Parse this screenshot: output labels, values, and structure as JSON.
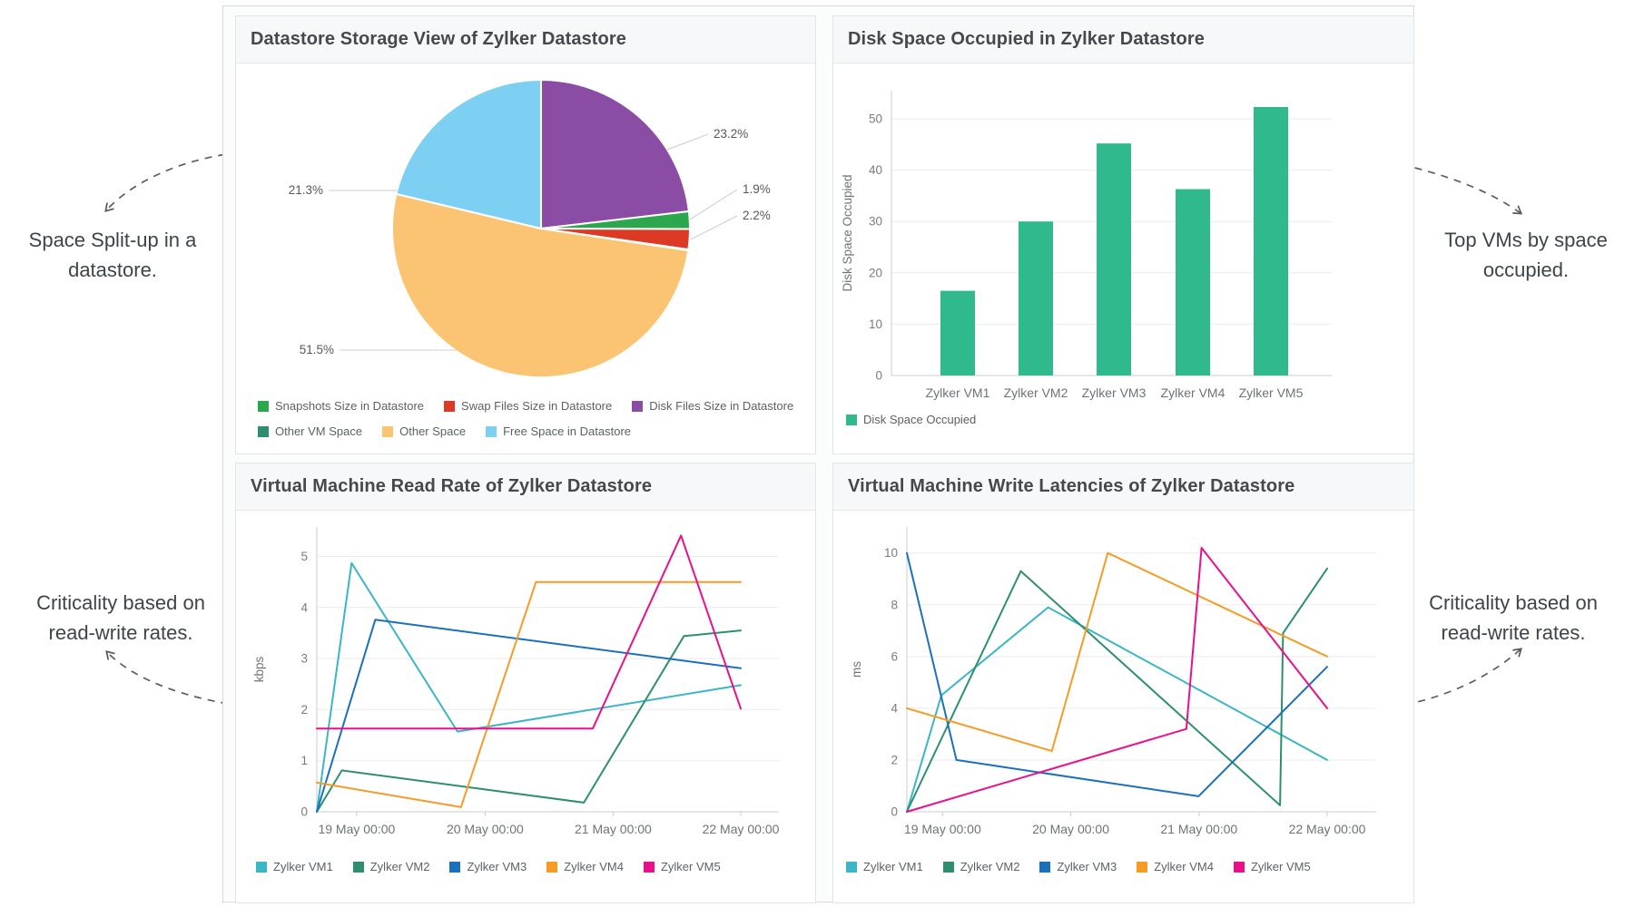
{
  "annotations": {
    "top_left": "Space Split-up in a datastore.",
    "top_right": "Top VMs by space occupied.",
    "bottom_left": "Criticality based on read-write rates.",
    "bottom_right": "Criticality based on read-write rates."
  },
  "chart_data": [
    {
      "type": "pie",
      "title": "Datastore Storage View of Zylker Datastore",
      "slices": [
        {
          "label": "Disk Files Size in Datastore",
          "value": 23.2,
          "color": "#8a4ca4",
          "pct_label": "23.2%"
        },
        {
          "label": "Snapshots Size in Datastore",
          "value": 1.9,
          "color": "#2ca74d",
          "pct_label": "1.9%"
        },
        {
          "label": "Swap Files Size in Datastore",
          "value": 2.2,
          "color": "#dc3a25",
          "pct_label": "2.2%"
        },
        {
          "label": "Other VM Space",
          "value": 0.1,
          "color": "#2d8f6e",
          "pct_label": ""
        },
        {
          "label": "Other Space",
          "value": 51.5,
          "color": "#fac473",
          "pct_label": "51.5%"
        },
        {
          "label": "Free Space in Datastore",
          "value": 21.3,
          "color": "#7ed0f2",
          "pct_label": "21.3%"
        }
      ],
      "legend_rows": [
        [
          {
            "label": "Snapshots Size in Datastore",
            "color": "#2ca74d"
          },
          {
            "label": "Swap Files Size in Datastore",
            "color": "#dc3a25"
          },
          {
            "label": "Disk Files Size in Datastore",
            "color": "#8a4ca4"
          }
        ],
        [
          {
            "label": "Other VM Space",
            "color": "#2d8f6e"
          },
          {
            "label": "Other Space",
            "color": "#fac473"
          },
          {
            "label": "Free Space in Datastore",
            "color": "#7ed0f2"
          }
        ]
      ]
    },
    {
      "type": "bar",
      "title": "Disk Space Occupied in Zylker Datastore",
      "categories": [
        "Zylker VM1",
        "Zylker VM2",
        "Zylker VM3",
        "Zylker VM4",
        "Zylker VM5"
      ],
      "values": [
        16.5,
        30,
        45.2,
        36.3,
        52.3
      ],
      "ylabel": "Disk Space Occupied",
      "yticks": [
        0,
        10,
        20,
        30,
        40,
        50
      ],
      "ylim": [
        0,
        55
      ],
      "bar_color": "#2fb98c",
      "legend": [
        {
          "label": "Disk Space Occupied",
          "color": "#2fb98c"
        }
      ]
    },
    {
      "type": "line",
      "title": "Virtual Machine Read Rate of Zylker Datastore",
      "ylabel": "kbps",
      "yticks": [
        0,
        1,
        2,
        3,
        4,
        5
      ],
      "ylim": [
        0,
        5.55
      ],
      "xtick_labels": [
        "19 May 00:00",
        "20 May 00:00",
        "21 May 00:00",
        "22 May 00:00"
      ],
      "xtick_positions": [
        0.094,
        0.397,
        0.699,
        1.0
      ],
      "series": [
        {
          "name": "Zylker VM1",
          "color": "#3ab6c6",
          "points": [
            [
              0,
              0
            ],
            [
              0.082,
              4.87
            ],
            [
              0.332,
              1.57
            ],
            [
              1,
              2.48
            ]
          ]
        },
        {
          "name": "Zylker VM2",
          "color": "#2d8f6e",
          "points": [
            [
              0,
              0
            ],
            [
              0.059,
              0.81
            ],
            [
              0.63,
              0.18
            ],
            [
              0.866,
              3.44
            ],
            [
              1,
              3.55
            ]
          ]
        },
        {
          "name": "Zylker VM3",
          "color": "#1a70bd",
          "points": [
            [
              0,
              0
            ],
            [
              0.138,
              3.76
            ],
            [
              1,
              2.81
            ]
          ]
        },
        {
          "name": "Zylker VM4",
          "color": "#f79b27",
          "points": [
            [
              0,
              0.57
            ],
            [
              0.34,
              0.09
            ],
            [
              0.517,
              4.5
            ],
            [
              1,
              4.5
            ]
          ]
        },
        {
          "name": "Zylker VM5",
          "color": "#eb0f8c",
          "points": [
            [
              0,
              1.63
            ],
            [
              0.651,
              1.63
            ],
            [
              0.859,
              5.41
            ],
            [
              1,
              2.02
            ]
          ]
        }
      ]
    },
    {
      "type": "line",
      "title": "Virtual Machine Write Latencies of Zylker Datastore",
      "ylabel": "ms",
      "yticks": [
        0,
        2,
        4,
        6,
        8,
        10
      ],
      "ylim": [
        0,
        11.1
      ],
      "xtick_labels": [
        "19 May 00:00",
        "20 May 00:00",
        "21 May 00:00",
        "22 May 00:00"
      ],
      "xtick_positions": [
        0.085,
        0.39,
        0.695,
        1.0
      ],
      "series": [
        {
          "name": "Zylker VM1",
          "color": "#3ab6c6",
          "points": [
            [
              0,
              0
            ],
            [
              0.082,
              4.5
            ],
            [
              0.336,
              7.9
            ],
            [
              1,
              2.0
            ]
          ]
        },
        {
          "name": "Zylker VM2",
          "color": "#2d8f6e",
          "points": [
            [
              0,
              0
            ],
            [
              0.271,
              9.3
            ],
            [
              0.888,
              0.25
            ],
            [
              0.895,
              6.9
            ],
            [
              1,
              9.4
            ]
          ]
        },
        {
          "name": "Zylker VM3",
          "color": "#1a70bd",
          "points": [
            [
              0,
              10
            ],
            [
              0.118,
              2.0
            ],
            [
              0.694,
              0.6
            ],
            [
              1,
              5.6
            ]
          ]
        },
        {
          "name": "Zylker VM4",
          "color": "#f79b27",
          "points": [
            [
              0,
              4.0
            ],
            [
              0.345,
              2.35
            ],
            [
              0.478,
              10.0
            ],
            [
              1,
              6.0
            ]
          ]
        },
        {
          "name": "Zylker VM5",
          "color": "#eb0f8c",
          "points": [
            [
              0,
              0
            ],
            [
              0.665,
              3.2
            ],
            [
              0.701,
              10.2
            ],
            [
              1,
              4.0
            ]
          ]
        }
      ]
    }
  ],
  "colors": {
    "grid": "#e9ebee",
    "axis": "#c8ccd0",
    "tick_text": "#767c82",
    "axis_title": "#6d7379",
    "leader": "#c9ccd0",
    "pct_text": "#54585d",
    "arrow": "#5a5e63"
  }
}
